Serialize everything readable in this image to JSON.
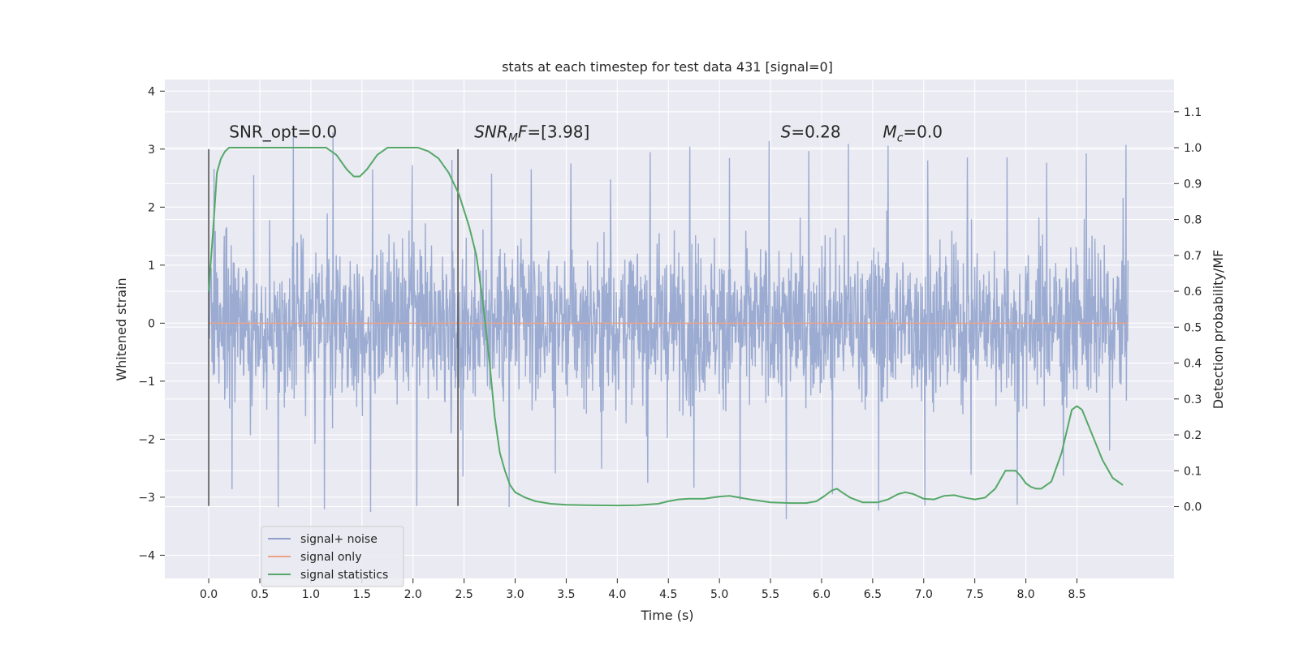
{
  "chart_data": {
    "type": "line",
    "title": "stats at each timestep for test data 431 [signal=0]",
    "xlabel": "Time (s)",
    "ylabel": "Whitened strain",
    "ylabel_right": "Detection probability/MF",
    "xlim": [
      -0.43,
      9.45
    ],
    "ylim": [
      -4.4,
      4.2
    ],
    "ylim_right": [
      -0.2,
      1.19
    ],
    "x_ticks": [
      0.0,
      0.5,
      1.0,
      1.5,
      2.0,
      2.5,
      3.0,
      3.5,
      4.0,
      4.5,
      5.0,
      5.5,
      6.0,
      6.5,
      7.0,
      7.5,
      8.0,
      8.5
    ],
    "x_tick_labels": [
      "0.0",
      "0.5",
      "1.0",
      "1.5",
      "2.0",
      "2.5",
      "3.0",
      "3.5",
      "4.0",
      "4.5",
      "5.0",
      "5.5",
      "6.0",
      "6.5",
      "7.0",
      "7.5",
      "8.0",
      "8.5"
    ],
    "y_ticks": [
      -4,
      -3,
      -2,
      -1,
      0,
      1,
      2,
      3,
      4
    ],
    "y_tick_labels": [
      "−4",
      "−3",
      "−2",
      "−1",
      "0",
      "1",
      "2",
      "3",
      "4"
    ],
    "y_ticks_right": [
      0.0,
      0.1,
      0.2,
      0.3,
      0.4,
      0.5,
      0.6,
      0.7,
      0.8,
      0.9,
      1.0,
      1.1
    ],
    "y_tick_labels_right": [
      "0.0",
      "0.1",
      "0.2",
      "0.3",
      "0.4",
      "0.5",
      "0.6",
      "0.7",
      "0.8",
      "0.9",
      "1.0",
      "1.1"
    ],
    "grid": true,
    "legend_placement": "lower-left",
    "series": [
      {
        "name": "signal+ noise",
        "axis": "left",
        "color": "#8da0cb",
        "x_range": [
          0.0,
          9.0
        ],
        "sample_count": 2250,
        "envelope": [
          {
            "x": 0.0,
            "max": 2.9,
            "min": -3.1
          },
          {
            "x": 0.5,
            "max": 2.8,
            "min": -3.2
          },
          {
            "x": 1.0,
            "max": 3.8,
            "min": -3.4
          },
          {
            "x": 1.5,
            "max": 2.7,
            "min": -3.4
          },
          {
            "x": 2.0,
            "max": 3.0,
            "min": -3.5
          },
          {
            "x": 2.5,
            "max": 3.0,
            "min": -2.8
          },
          {
            "x": 3.0,
            "max": 2.6,
            "min": -3.3
          },
          {
            "x": 3.5,
            "max": 2.9,
            "min": -2.6
          },
          {
            "x": 4.0,
            "max": 2.7,
            "min": -2.8
          },
          {
            "x": 4.5,
            "max": 3.4,
            "min": -3.0
          },
          {
            "x": 5.0,
            "max": 3.1,
            "min": -2.8
          },
          {
            "x": 5.5,
            "max": 3.3,
            "min": -3.8
          },
          {
            "x": 6.0,
            "max": 3.1,
            "min": -2.9
          },
          {
            "x": 6.5,
            "max": 3.4,
            "min": -3.6
          },
          {
            "x": 7.0,
            "max": 3.0,
            "min": -3.3
          },
          {
            "x": 7.5,
            "max": 3.0,
            "min": -2.8
          },
          {
            "x": 8.0,
            "max": 3.0,
            "min": -3.5
          },
          {
            "x": 8.5,
            "max": 3.1,
            "min": -2.5
          },
          {
            "x": 9.0,
            "max": 3.3,
            "min": -2.4
          }
        ]
      },
      {
        "name": "signal only",
        "axis": "left",
        "color": "#e8a38a",
        "x": [
          0.0,
          9.0
        ],
        "y": [
          0.0,
          0.0
        ]
      },
      {
        "name": "signal statistics",
        "axis": "right",
        "color": "#55a868",
        "x": [
          0.0,
          0.05,
          0.08,
          0.12,
          0.16,
          0.2,
          0.3,
          0.5,
          0.8,
          1.0,
          1.15,
          1.25,
          1.35,
          1.42,
          1.48,
          1.55,
          1.65,
          1.75,
          1.9,
          2.05,
          2.15,
          2.25,
          2.35,
          2.45,
          2.55,
          2.62,
          2.68,
          2.75,
          2.8,
          2.85,
          2.9,
          2.95,
          3.0,
          3.1,
          3.2,
          3.35,
          3.5,
          3.7,
          4.0,
          4.2,
          4.4,
          4.5,
          4.6,
          4.7,
          4.85,
          5.0,
          5.1,
          5.3,
          5.5,
          5.7,
          5.85,
          5.95,
          6.03,
          6.1,
          6.15,
          6.2,
          6.28,
          6.4,
          6.55,
          6.65,
          6.75,
          6.82,
          6.9,
          7.0,
          7.1,
          7.2,
          7.3,
          7.4,
          7.5,
          7.6,
          7.7,
          7.8,
          7.9,
          7.95,
          8.0,
          8.05,
          8.1,
          8.15,
          8.25,
          8.35,
          8.45,
          8.5,
          8.55,
          8.65,
          8.75,
          8.85,
          8.95
        ],
        "y": [
          0.6,
          0.8,
          0.93,
          0.97,
          0.99,
          1.0,
          1.0,
          1.0,
          1.0,
          1.0,
          1.0,
          0.98,
          0.94,
          0.92,
          0.92,
          0.94,
          0.98,
          1.0,
          1.0,
          1.0,
          0.99,
          0.97,
          0.93,
          0.87,
          0.78,
          0.7,
          0.58,
          0.4,
          0.25,
          0.15,
          0.1,
          0.06,
          0.04,
          0.025,
          0.015,
          0.008,
          0.005,
          0.004,
          0.003,
          0.004,
          0.008,
          0.015,
          0.02,
          0.022,
          0.022,
          0.028,
          0.03,
          0.02,
          0.012,
          0.01,
          0.01,
          0.015,
          0.03,
          0.045,
          0.05,
          0.04,
          0.025,
          0.012,
          0.012,
          0.02,
          0.035,
          0.04,
          0.035,
          0.022,
          0.02,
          0.03,
          0.032,
          0.025,
          0.02,
          0.025,
          0.05,
          0.1,
          0.1,
          0.085,
          0.065,
          0.055,
          0.05,
          0.05,
          0.07,
          0.15,
          0.27,
          0.28,
          0.27,
          0.2,
          0.13,
          0.08,
          0.06
        ]
      }
    ],
    "vertical_markers": [
      {
        "x": 0.0,
        "y_from": -3.15,
        "y_to": 3.0,
        "color": "#555555"
      },
      {
        "x": 2.44,
        "y_from": -3.15,
        "y_to": 3.0,
        "color": "#555555"
      }
    ],
    "annotations": [
      {
        "key": "snr_opt",
        "x": 0.2,
        "y": 3.2,
        "text": "SNR_opt=0.0",
        "style": "plain"
      },
      {
        "key": "snr_mf",
        "x": 2.6,
        "y": 3.2,
        "pre": "SNR",
        "sub": "M",
        "mid": "F",
        "post": "=[3.98]",
        "style": "math"
      },
      {
        "key": "s",
        "x": 5.6,
        "y": 3.2,
        "pre": "S",
        "post": "=0.28",
        "style": "math"
      },
      {
        "key": "mc",
        "x": 6.6,
        "y": 3.2,
        "pre": "M",
        "sub": "c",
        "post": "=0.0",
        "style": "math"
      }
    ],
    "colors": {
      "plot_background": "#eaeaf2",
      "grid": "#ffffff",
      "text": "#262626",
      "legend_background": "#eaeaf2",
      "legend_border": "#cccccc"
    }
  }
}
